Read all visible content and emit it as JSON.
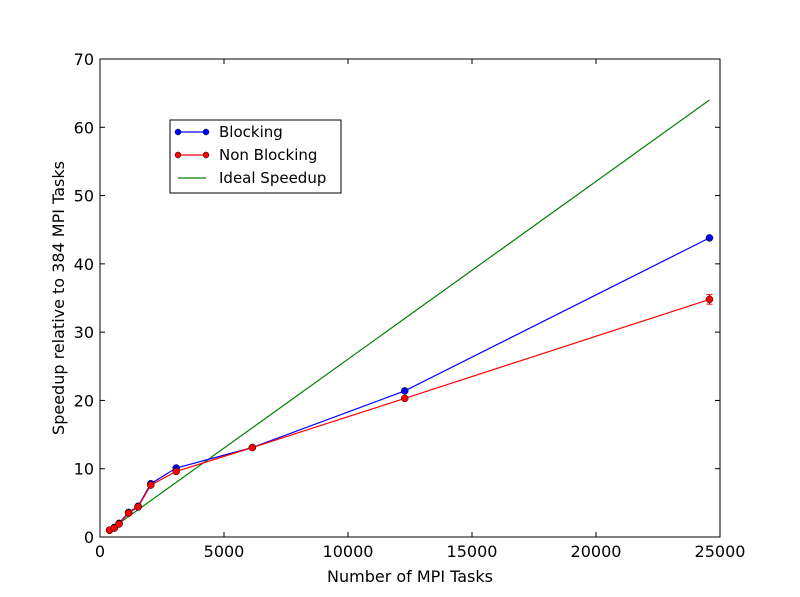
{
  "chart_data": {
    "type": "line",
    "title": "",
    "xlabel": "Number of MPI Tasks",
    "ylabel": "Speedup relative to 384 MPI Tasks",
    "xlim": [
      0,
      25000
    ],
    "ylim": [
      0,
      70
    ],
    "xticks": [
      0,
      5000,
      10000,
      15000,
      20000,
      25000
    ],
    "yticks": [
      0,
      10,
      20,
      30,
      40,
      50,
      60,
      70
    ],
    "grid": false,
    "legend_position": "upper-left",
    "series": [
      {
        "name": "Blocking",
        "color": "#0000ff",
        "marker": "circle",
        "x": [
          384,
          576,
          768,
          1152,
          1536,
          2048,
          3072,
          6144,
          12288,
          24576
        ],
        "y": [
          1.0,
          1.4,
          2.0,
          3.6,
          4.5,
          7.8,
          10.1,
          13.1,
          21.4,
          43.8
        ]
      },
      {
        "name": "Non Blocking",
        "color": "#ff0000",
        "marker": "circle",
        "x": [
          384,
          576,
          768,
          1152,
          1536,
          2048,
          3072,
          6144,
          12288,
          24576
        ],
        "y": [
          1.0,
          1.3,
          1.9,
          3.5,
          4.4,
          7.6,
          9.6,
          13.1,
          20.3,
          34.8
        ],
        "error": [
          0,
          0,
          0,
          0,
          0,
          0,
          0,
          0,
          0,
          0.7
        ]
      },
      {
        "name": "Ideal Speedup",
        "color": "#008000",
        "marker": "none",
        "x": [
          384,
          24576
        ],
        "y": [
          1,
          64
        ]
      }
    ]
  }
}
